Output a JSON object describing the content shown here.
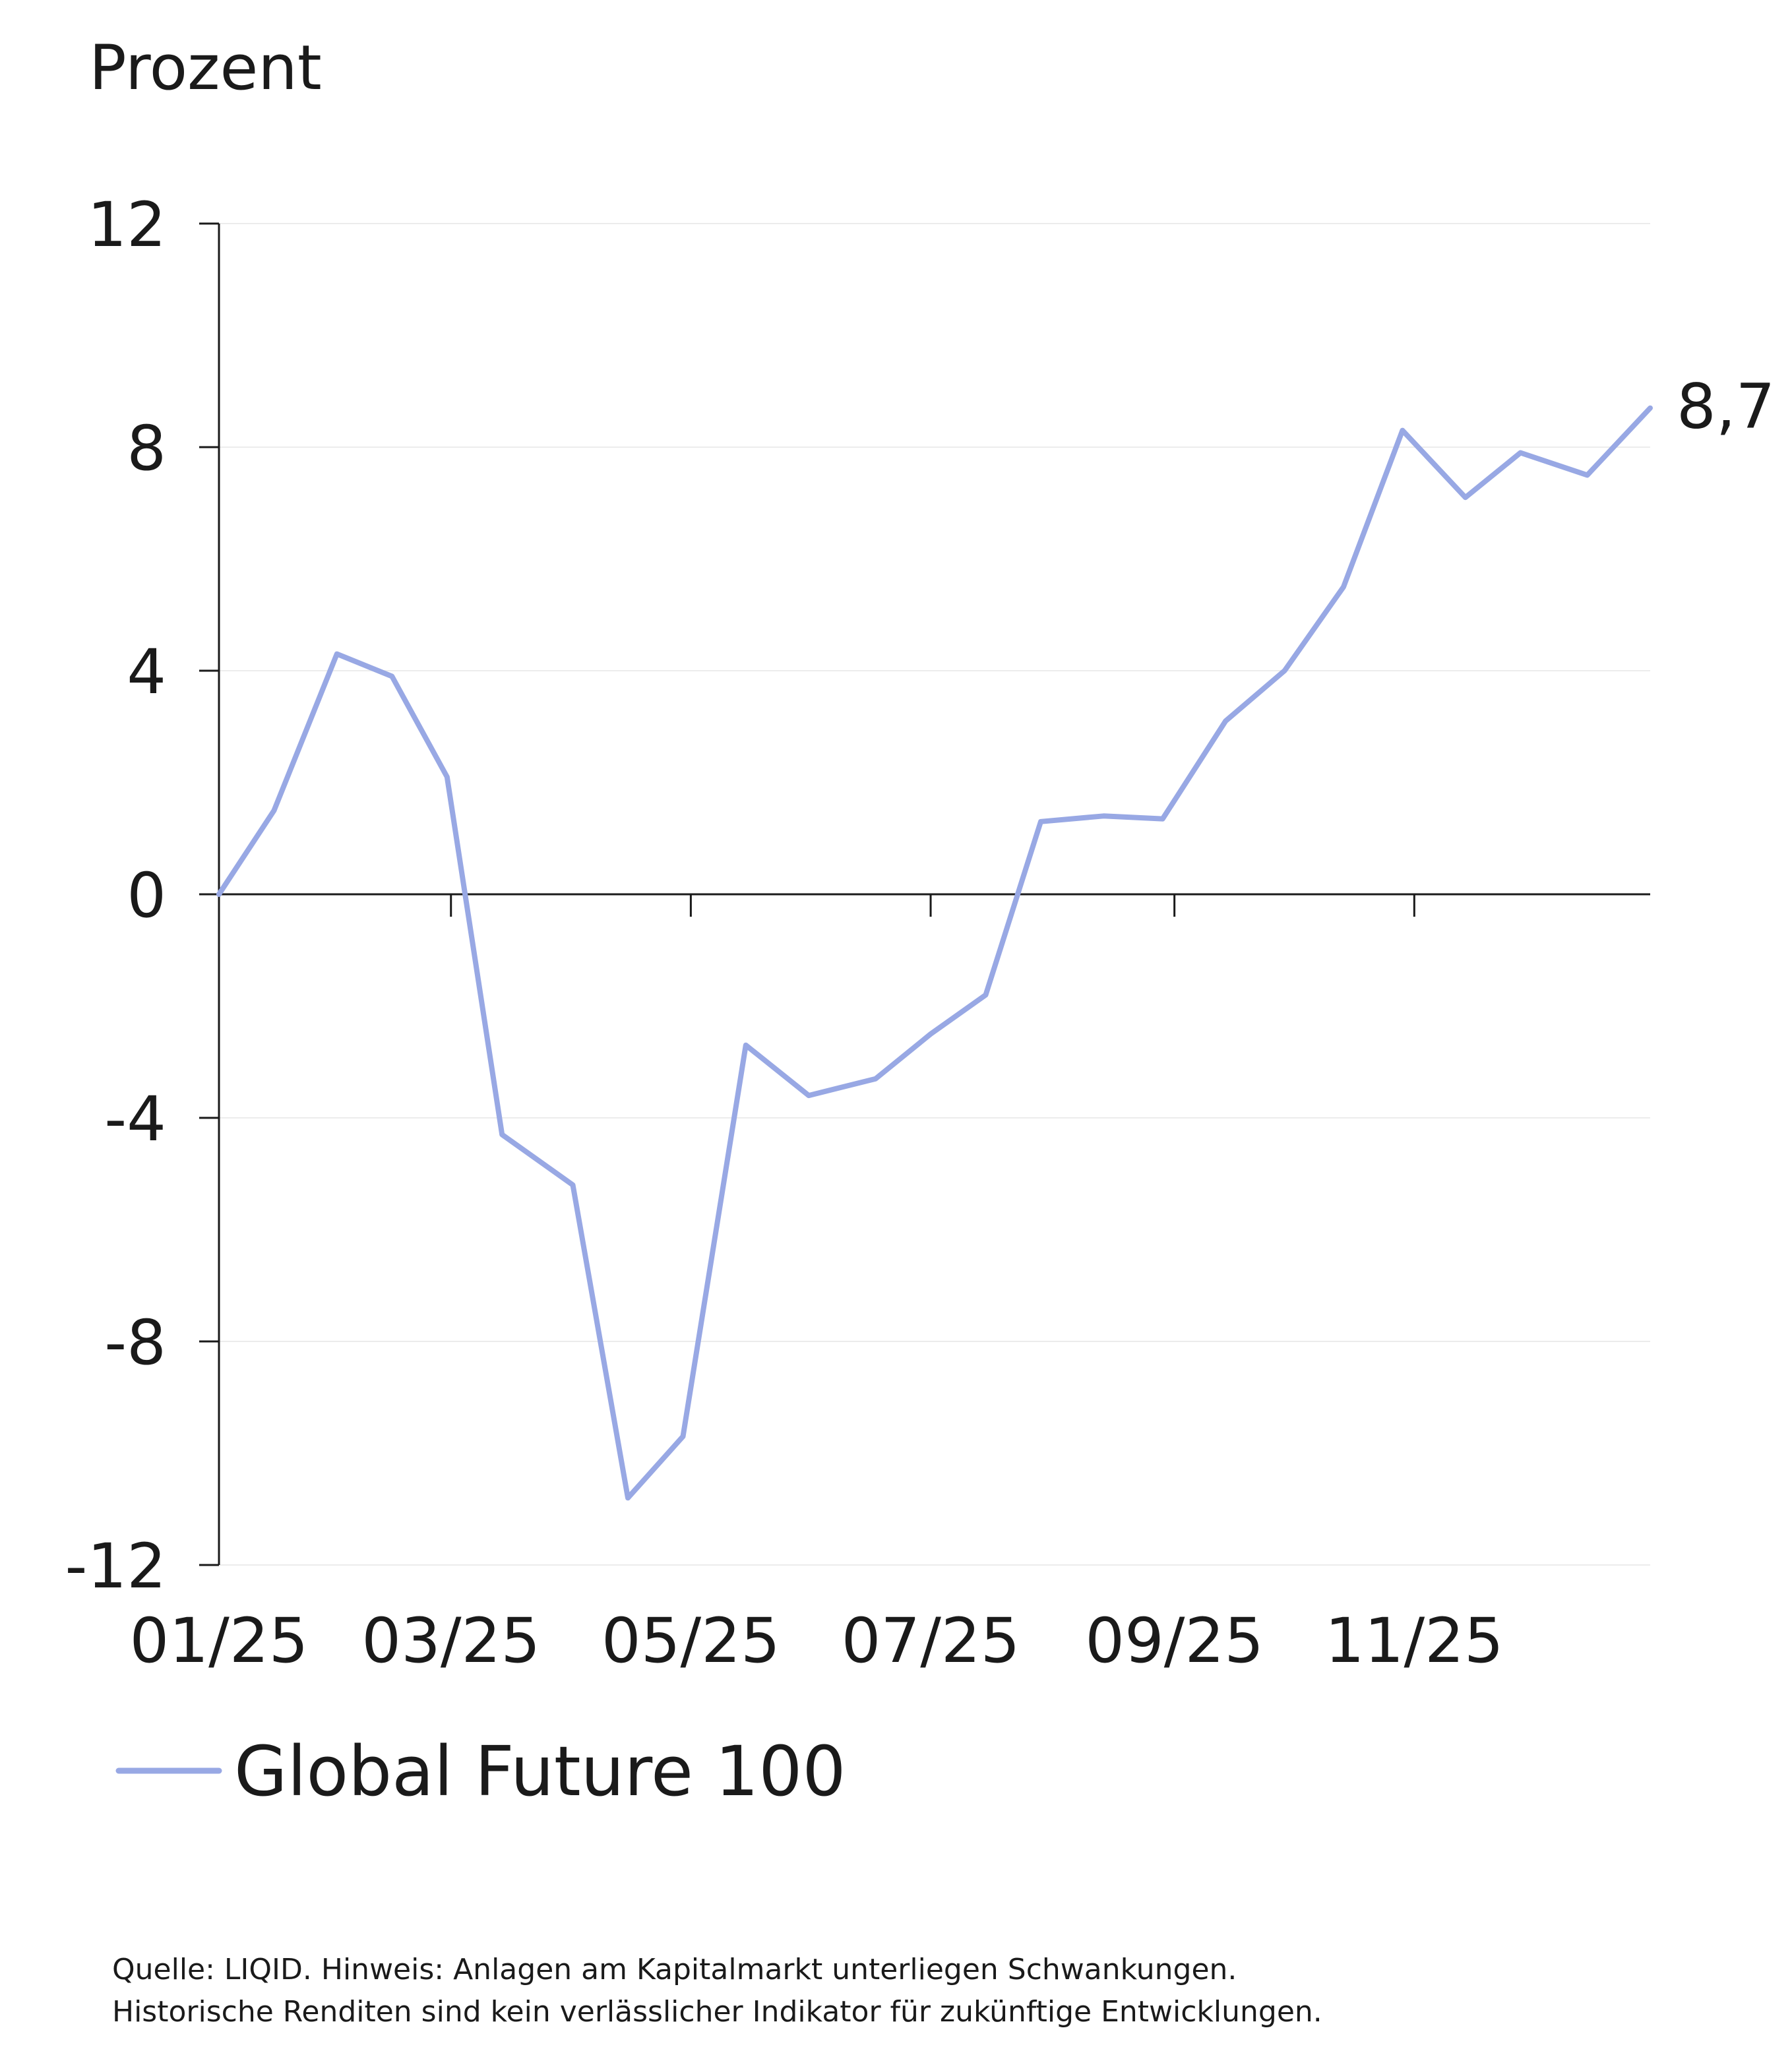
{
  "chart_data": {
    "type": "line",
    "ylabel": "Prozent",
    "ylim": [
      -12,
      12
    ],
    "yticks": [
      12,
      8,
      4,
      0,
      -4,
      -8,
      -12
    ],
    "ytick_labels": [
      "12",
      "8",
      "4",
      "0",
      "-4",
      "-8",
      "-12"
    ],
    "xlim": [
      "2025-01-01",
      "2025-12-31"
    ],
    "xticks": [
      "2025-01-01",
      "2025-03-01",
      "2025-05-01",
      "2025-07-01",
      "2025-09-01",
      "2025-11-01"
    ],
    "xtick_labels": [
      "01/25",
      "03/25",
      "05/25",
      "07/25",
      "09/25",
      "11/25"
    ],
    "grid": "horizontal",
    "legend": "bottom",
    "series": [
      {
        "name": "Global Future 100",
        "color": "#98a8e4",
        "x": [
          "2025-01-01",
          "2025-01-15",
          "2025-01-31",
          "2025-02-14",
          "2025-02-28",
          "2025-03-14",
          "2025-04-01",
          "2025-04-15",
          "2025-04-29",
          "2025-05-15",
          "2025-05-31",
          "2025-06-17",
          "2025-07-01",
          "2025-07-15",
          "2025-07-29",
          "2025-08-14",
          "2025-08-29",
          "2025-09-14",
          "2025-09-29",
          "2025-10-14",
          "2025-10-29",
          "2025-11-14",
          "2025-11-28",
          "2025-12-15",
          "2025-12-31"
        ],
        "values": [
          0.0,
          1.5,
          4.3,
          3.9,
          2.1,
          -4.3,
          -5.2,
          -10.8,
          -9.7,
          -2.7,
          -3.6,
          -3.3,
          -2.5,
          -1.8,
          1.3,
          1.4,
          1.35,
          3.1,
          4.0,
          5.5,
          8.3,
          7.1,
          7.9,
          7.5,
          8.7
        ]
      }
    ],
    "end_label": "8,7",
    "source_lines": [
      "Quelle: LIQID. Hinweis: Anlagen am Kapitalmarkt unterliegen Schwankungen.",
      "Historische Renditen sind kein verlässlicher Indikator für zukünftige Entwicklungen."
    ]
  }
}
